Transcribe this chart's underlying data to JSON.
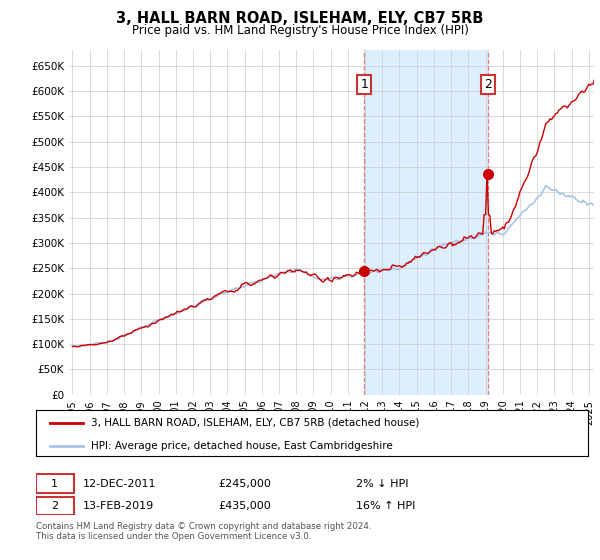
{
  "title": "3, HALL BARN ROAD, ISLEHAM, ELY, CB7 5RB",
  "subtitle": "Price paid vs. HM Land Registry's House Price Index (HPI)",
  "ylabel_ticks": [
    "£0",
    "£50K",
    "£100K",
    "£150K",
    "£200K",
    "£250K",
    "£300K",
    "£350K",
    "£400K",
    "£450K",
    "£500K",
    "£550K",
    "£600K",
    "£650K"
  ],
  "ytick_values": [
    0,
    50000,
    100000,
    150000,
    200000,
    250000,
    300000,
    350000,
    400000,
    450000,
    500000,
    550000,
    600000,
    650000
  ],
  "xlim_start": 1994.8,
  "xlim_end": 2025.3,
  "ylim_min": 0,
  "ylim_max": 680000,
  "hpi_color": "#aac4e8",
  "price_color": "#cc0000",
  "transaction1_date": 2011.95,
  "transaction1_price": 245000,
  "transaction2_date": 2019.12,
  "transaction2_price": 435000,
  "legend1_label": "3, HALL BARN ROAD, ISLEHAM, ELY, CB7 5RB (detached house)",
  "legend2_label": "HPI: Average price, detached house, East Cambridgeshire",
  "annot1_label": "1",
  "annot1_date": "12-DEC-2011",
  "annot1_price": "£245,000",
  "annot1_hpi": "2% ↓ HPI",
  "annot2_label": "2",
  "annot2_date": "13-FEB-2019",
  "annot2_price": "£435,000",
  "annot2_hpi": "16% ↑ HPI",
  "footer": "Contains HM Land Registry data © Crown copyright and database right 2024.\nThis data is licensed under the Open Government Licence v3.0.",
  "plot_bg_color": "#ffffff",
  "grid_color": "#cccccc",
  "span_color": "#ddeeff"
}
